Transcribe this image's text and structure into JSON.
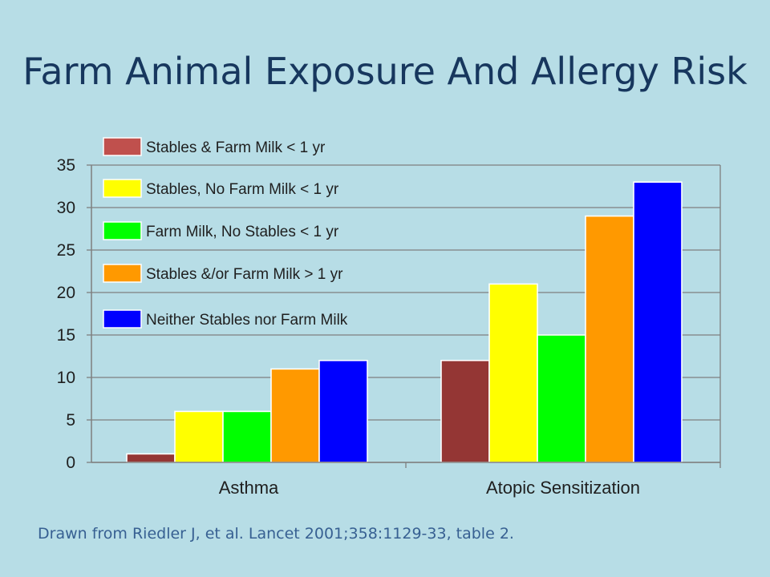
{
  "slide": {
    "title": "Farm Animal Exposure And Allergy Risk",
    "source": "Drawn from Riedler J, et al. Lancet 2001;358:1129-33, table 2."
  },
  "chart_data": {
    "type": "bar",
    "categories": [
      "Asthma",
      "Atopic Sensitization"
    ],
    "series": [
      {
        "name": "Stables & Farm Milk < 1 yr",
        "color": "#943634",
        "legend_color": "#c0504d",
        "values": [
          1,
          12
        ]
      },
      {
        "name": "Stables, No Farm Milk < 1 yr",
        "color": "#ffff00",
        "legend_color": "#ffff00",
        "values": [
          6,
          21
        ]
      },
      {
        "name": "Farm Milk, No Stables < 1 yr",
        "color": "#00ff00",
        "legend_color": "#00ff00",
        "values": [
          6,
          15
        ]
      },
      {
        "name": "Stables &/or Farm Milk > 1 yr",
        "color": "#ff9900",
        "legend_color": "#ff9900",
        "values": [
          11,
          29
        ]
      },
      {
        "name": "Neither Stables nor Farm Milk",
        "color": "#0000ff",
        "legend_color": "#0000ff",
        "values": [
          12,
          33
        ]
      }
    ],
    "ylim": [
      0,
      35
    ],
    "yticks": [
      0,
      5,
      10,
      15,
      20,
      25,
      30,
      35
    ],
    "grid": true,
    "legend_position": "top-left"
  }
}
